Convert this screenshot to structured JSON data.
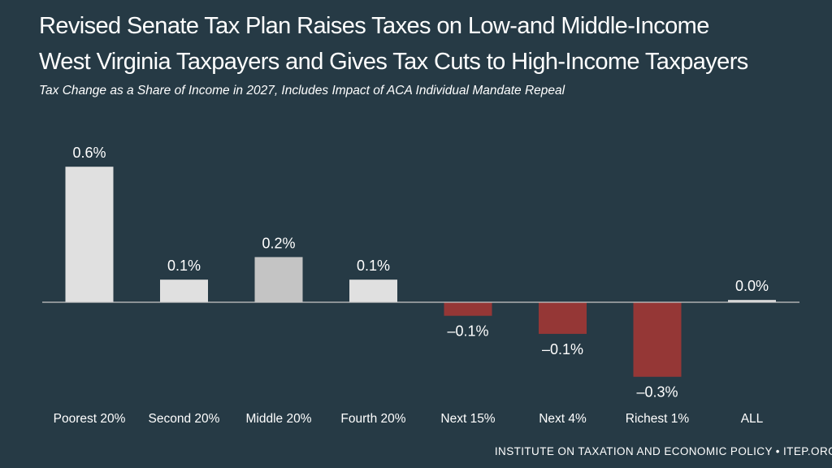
{
  "title_lines": [
    "Revised Senate Tax Plan Raises Taxes on Low-and Middle-Income",
    "West Virginia Taxpayers and Gives Tax Cuts to High-Income Taxpayers"
  ],
  "subtitle": "Tax Change as a Share of Income in 2027, Includes Impact of ACA Individual Mandate Repeal",
  "footer": "INSTITUTE ON TAXATION AND ECONOMIC POLICY • ITEP.ORG",
  "colors": {
    "background": "#263a45",
    "positive_bar": "#e0e0e0",
    "positive_bar_highlight": "#c4c4c4",
    "negative_bar": "#953736",
    "baseline": "#c8c8c8",
    "text": "#ffffff"
  },
  "chart_data": {
    "type": "bar",
    "title": "Revised Senate Tax Plan Raises Taxes on Low-and Middle-Income West Virginia Taxpayers and Gives Tax Cuts to High-Income Taxpayers",
    "subtitle": "Tax Change as a Share of Income in 2027, Includes Impact of ACA Individual Mandate Repeal",
    "xlabel": "",
    "ylabel": "",
    "categories": [
      "Poorest 20%",
      "Second 20%",
      "Middle 20%",
      "Fourth 20%",
      "Next 15%",
      "Next 4%",
      "Richest 1%",
      "ALL"
    ],
    "values": [
      0.6,
      0.1,
      0.2,
      0.1,
      -0.06,
      -0.14,
      -0.33,
      0.01
    ],
    "labels": [
      "0.6%",
      "0.1%",
      "0.2%",
      "0.1%",
      "–0.1%",
      "–0.1%",
      "–0.3%",
      "0.0%"
    ],
    "highlight_index": 2,
    "grid": false,
    "legend": "none"
  }
}
